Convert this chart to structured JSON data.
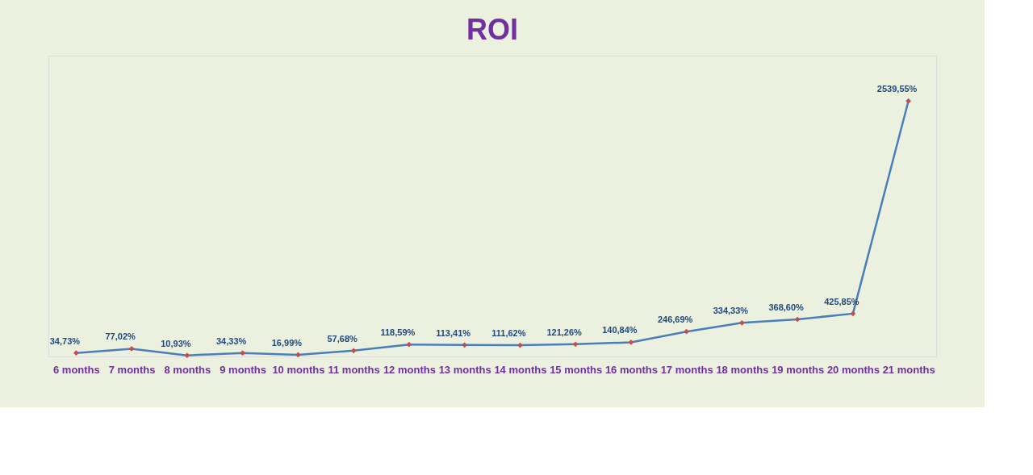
{
  "chart_data": {
    "type": "line",
    "title": "ROI",
    "categories": [
      "6 months",
      "7 months",
      "8 months",
      "9 months",
      "10 months",
      "11 months",
      "12 months",
      "13 months",
      "14 months",
      "15 months",
      "16 months",
      "17 months",
      "18 months",
      "19 months",
      "20 months",
      "21 months"
    ],
    "series": [
      {
        "color": "#4a7ebb",
        "values": [
          34.73,
          77.02,
          10.93,
          34.33,
          16.99,
          57.68,
          118.59,
          113.41,
          111.62,
          121.26,
          140.84,
          246.69,
          334.33,
          368.6,
          425.85,
          2539.55
        ],
        "value_labels": [
          "34,73%",
          "77,02%",
          "10,93%",
          "34,33%",
          "16,99%",
          "57,68%",
          "118,59%",
          "113,41%",
          "111,62%",
          "121,26%",
          "140,84%",
          "246,69%",
          "334,33%",
          "368,60%",
          "425,85%",
          "2539,55%"
        ]
      }
    ],
    "ylim": [
      0,
      2990
    ],
    "tick_labels": "x",
    "marker": "diamond",
    "grid": false
  }
}
